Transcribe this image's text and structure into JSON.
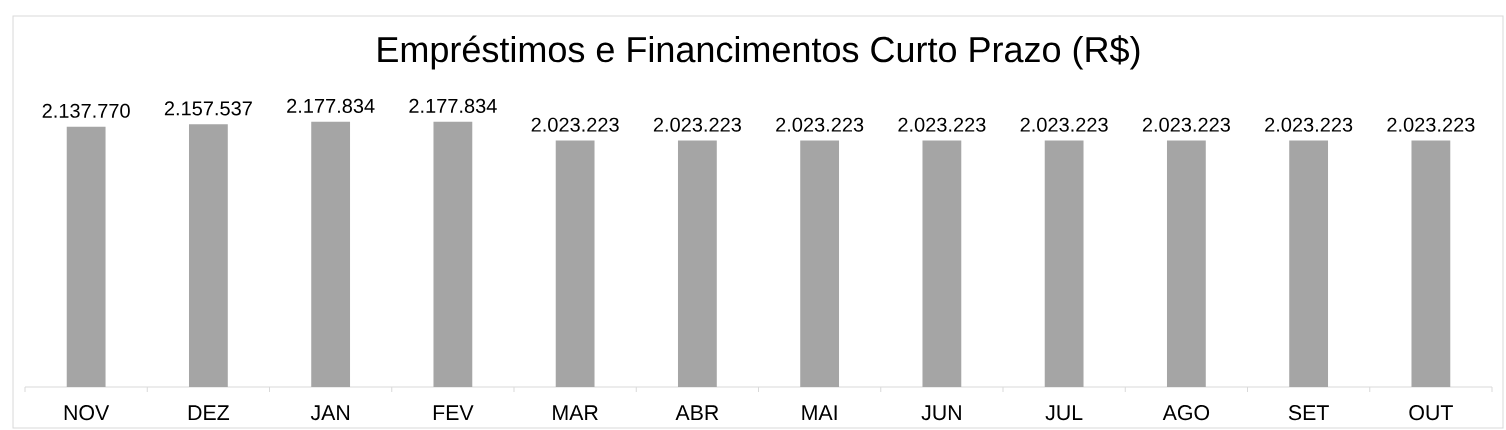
{
  "chart_data": {
    "type": "bar",
    "title": "Empréstimos e Financimentos Curto Prazo (R$)",
    "categories": [
      "NOV",
      "DEZ",
      "JAN",
      "FEV",
      "MAR",
      "ABR",
      "MAI",
      "JUN",
      "JUL",
      "AGO",
      "SET",
      "OUT"
    ],
    "values": [
      2137770,
      2157537,
      2177834,
      2177834,
      2023223,
      2023223,
      2023223,
      2023223,
      2023223,
      2023223,
      2023223,
      2023223
    ],
    "value_labels": [
      "2.137.770",
      "2.157.537",
      "2.177.834",
      "2.177.834",
      "2.023.223",
      "2.023.223",
      "2.023.223",
      "2.023.223",
      "2.023.223",
      "2.023.223",
      "2.023.223",
      "2.023.223"
    ],
    "color": "#a5a5a5",
    "tick_labels": "x"
  }
}
